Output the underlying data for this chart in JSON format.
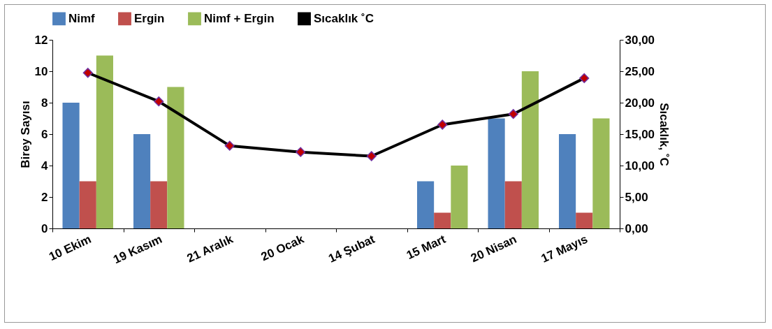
{
  "chart_data": {
    "type": "bar",
    "categories": [
      "10 Ekim",
      "19 Kasım",
      "21 Aralık",
      "20 Ocak",
      "14 Şubat",
      "15 Mart",
      "20 Nisan",
      "17 Mayıs"
    ],
    "ylabel": "Birey Sayısı",
    "y2label": "Sıcaklık, ˚C",
    "ylim": [
      0,
      12
    ],
    "yticks": [
      0,
      2,
      4,
      6,
      8,
      10,
      12
    ],
    "y2lim": [
      0,
      30
    ],
    "y2ticks": [
      {
        "value": 0,
        "label": "0,00"
      },
      {
        "value": 5,
        "label": "5,00"
      },
      {
        "value": 10,
        "label": "10,00"
      },
      {
        "value": 15,
        "label": "15,00"
      },
      {
        "value": 20,
        "label": "20,00"
      },
      {
        "value": 25,
        "label": "25,00"
      },
      {
        "value": 30,
        "label": "30,00"
      }
    ],
    "series": [
      {
        "name": "Nimf",
        "color": "#4f81bd",
        "values": [
          8,
          6,
          0,
          0,
          0,
          3,
          7,
          6
        ]
      },
      {
        "name": "Ergin",
        "color": "#c0504d",
        "values": [
          3,
          3,
          0,
          0,
          0,
          1,
          3,
          1
        ]
      },
      {
        "name": "Nimf + Ergin",
        "color": "#9bbb59",
        "values": [
          11,
          9,
          0,
          0,
          0,
          4,
          10,
          7
        ]
      },
      {
        "name": "Sıcaklık ˚C",
        "type": "line",
        "axis": "y2",
        "color": "#000000",
        "marker": "diamond",
        "values": [
          24.75,
          20.2,
          13.15,
          12.15,
          11.5,
          16.5,
          18.2,
          23.9
        ]
      }
    ],
    "legend": "top",
    "grid": false
  }
}
